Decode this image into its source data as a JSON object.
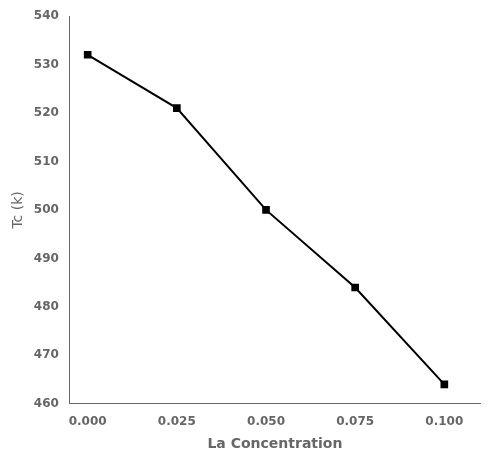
{
  "chart_data": {
    "type": "line",
    "x": [
      0.0,
      0.025,
      0.05,
      0.075,
      0.1
    ],
    "values": [
      532,
      521,
      500,
      484,
      464
    ],
    "xlabel": "La Concentration",
    "ylabel": "Tc (k)",
    "xlim": [
      -0.005,
      0.11
    ],
    "ylim": [
      460,
      540
    ],
    "xticks": [
      {
        "value": 0.0,
        "label": "0.000"
      },
      {
        "value": 0.025,
        "label": "0.025"
      },
      {
        "value": 0.05,
        "label": "0.050"
      },
      {
        "value": 0.075,
        "label": "0.075"
      },
      {
        "value": 0.1,
        "label": "0.100"
      }
    ],
    "yticks": [
      460,
      470,
      480,
      490,
      500,
      510,
      520,
      530,
      540
    ],
    "color": "black",
    "marker": "square",
    "grid": false
  }
}
